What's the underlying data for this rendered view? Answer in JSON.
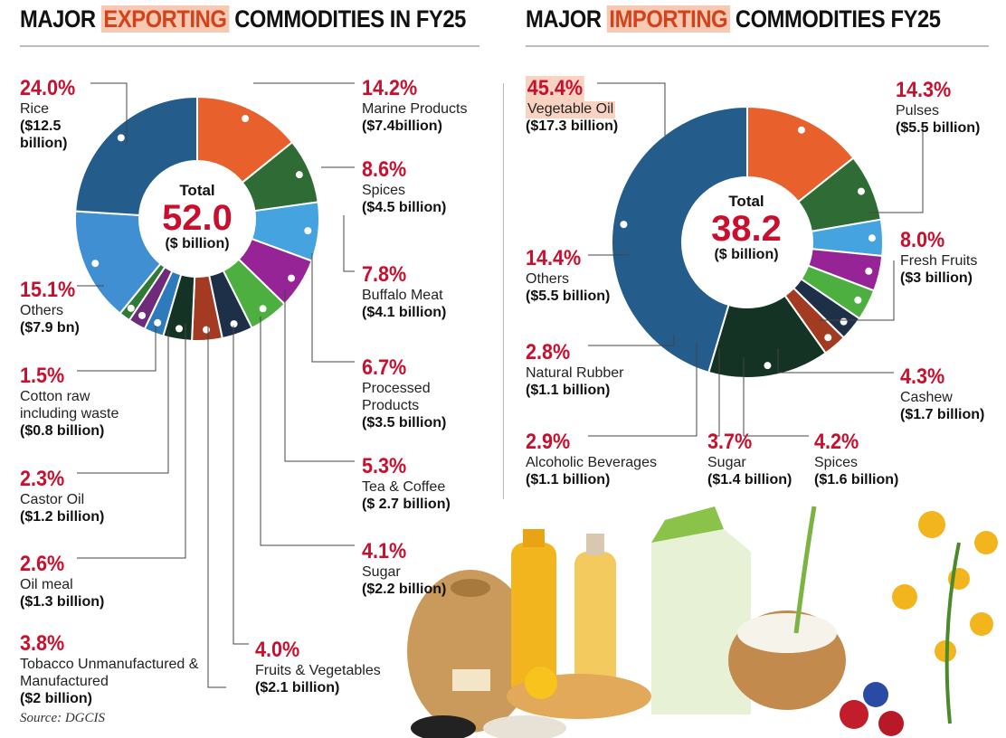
{
  "titles": {
    "export_pre": "MAJOR ",
    "export_hl": "EXPORTING",
    "export_post": " COMMODITIES IN FY25",
    "import_pre": "MAJOR ",
    "import_hl": "IMPORTING",
    "import_post": " COMMODITIES FY25"
  },
  "source": "Source: DGCIS",
  "chart_data": [
    {
      "type": "pie",
      "title": "MAJOR EXPORTING COMMODITIES IN FY25",
      "center": {
        "label": "Total",
        "value": "52.0",
        "unit": "($ billion)"
      },
      "slices": [
        {
          "name": "Marine Products",
          "pct": "14.2%",
          "value": "($7.4billion)",
          "percent": 14.2,
          "color": "#e8612c"
        },
        {
          "name": "Spices",
          "pct": "8.6%",
          "value": "($4.5 billion)",
          "percent": 8.6,
          "color": "#2e6b35"
        },
        {
          "name": "Buffalo Meat",
          "pct": "7.8%",
          "value": "($4.1 billion)",
          "percent": 7.8,
          "color": "#45a3e0"
        },
        {
          "name": "Processed Products",
          "pct": "6.7%",
          "value": "($3.5 billion)",
          "percent": 6.7,
          "color": "#962496"
        },
        {
          "name": "Tea & Coffee",
          "pct": "5.3%",
          "value": "($ 2.7 billion)",
          "percent": 5.3,
          "color": "#4caf3f"
        },
        {
          "name": "Sugar",
          "pct": "4.1%",
          "value": "($2.2 billion)",
          "percent": 4.1,
          "color": "#1d3048"
        },
        {
          "name": "Fruits & Vegetables",
          "pct": "4.0%",
          "value": "($2.1 billion)",
          "percent": 4.0,
          "color": "#a33a22"
        },
        {
          "name": "Tobacco Unmanufactured & Manufactured",
          "pct": "3.8%",
          "value": "($2 billion)",
          "percent": 3.8,
          "color": "#153324"
        },
        {
          "name": "Oil meal",
          "pct": "2.6%",
          "value": "($1.3 billion)",
          "percent": 2.6,
          "color": "#2d7bbd"
        },
        {
          "name": "Castor Oil",
          "pct": "2.3%",
          "value": "($1.2 billion)",
          "percent": 2.3,
          "color": "#6e2b7a"
        },
        {
          "name": "Cotton raw including waste",
          "pct": "1.5%",
          "value": "($0.8 billion)",
          "percent": 1.5,
          "color": "#2f7a35"
        },
        {
          "name": "Others",
          "pct": "15.1%",
          "value": "($7.9 bn)",
          "percent": 15.1,
          "color": "#3f8fd2"
        },
        {
          "name": "Rice",
          "pct": "24.0%",
          "value": "($12.5 billion)",
          "percent": 24.0,
          "color": "#245c8c"
        }
      ]
    },
    {
      "type": "pie",
      "title": "MAJOR IMPORTING COMMODITIES FY25",
      "center": {
        "label": "Total",
        "value": "38.2",
        "unit": "($ billion)"
      },
      "slices": [
        {
          "name": "Pulses",
          "pct": "14.3%",
          "value": "($5.5 billion)",
          "percent": 14.3,
          "color": "#e8612c"
        },
        {
          "name": "Fresh Fruits",
          "pct": "8.0%",
          "value": "($3 billion)",
          "percent": 8.0,
          "color": "#2e6b35"
        },
        {
          "name": "Cashew",
          "pct": "4.3%",
          "value": "($1.7 billion)",
          "percent": 4.3,
          "color": "#45a3e0"
        },
        {
          "name": "Spices",
          "pct": "4.2%",
          "value": "($1.6 billion)",
          "percent": 4.2,
          "color": "#962496"
        },
        {
          "name": "Sugar",
          "pct": "3.7%",
          "value": "($1.4 billion)",
          "percent": 3.7,
          "color": "#4caf3f"
        },
        {
          "name": "Alcoholic Beverages",
          "pct": "2.9%",
          "value": "($1.1 billion)",
          "percent": 2.9,
          "color": "#1d3048"
        },
        {
          "name": "Natural Rubber",
          "pct": "2.8%",
          "value": "($1.1 billion)",
          "percent": 2.8,
          "color": "#a33a22"
        },
        {
          "name": "Others",
          "pct": "14.4%",
          "value": "($5.5 billion)",
          "percent": 14.4,
          "color": "#153324"
        },
        {
          "name": "Vegetable Oil",
          "pct": "45.4%",
          "value": "($17.3 billion)",
          "percent": 45.4,
          "color": "#245c8c"
        }
      ]
    }
  ]
}
